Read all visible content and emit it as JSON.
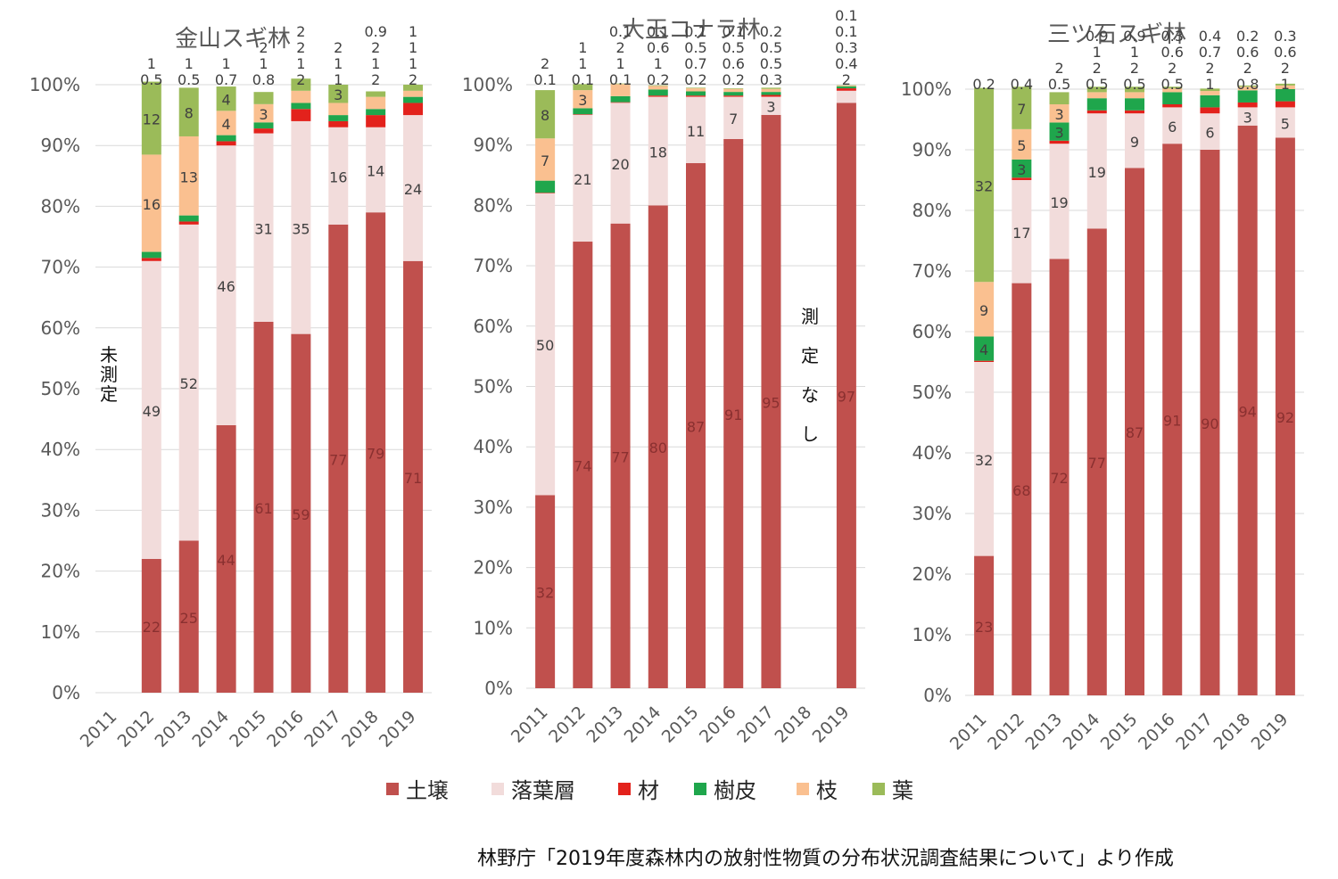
{
  "legend_position": "bottom",
  "source_note": "林野庁「2019年度森林内の放射性物質の分布状況調査結果について」より作成",
  "chart_data": [
    {
      "type": "bar",
      "stacked": true,
      "title": "金山スギ林",
      "categories": [
        "2011",
        "2012",
        "2013",
        "2014",
        "2015",
        "2016",
        "2017",
        "2018",
        "2019"
      ],
      "yticks": [
        "0%",
        "10%",
        "20%",
        "30%",
        "40%",
        "50%",
        "60%",
        "70%",
        "80%",
        "90%",
        "100%"
      ],
      "ylim": [
        0,
        100
      ],
      "annotation": "未測定",
      "annotation_category": "2011",
      "series": [
        {
          "name": "土壌",
          "color": "#c0504d",
          "values": [
            null,
            22,
            25,
            44,
            61,
            59,
            77,
            79,
            71
          ],
          "labels": [
            "",
            "22",
            "25",
            "44",
            "61",
            "59",
            "77",
            "79",
            "71"
          ]
        },
        {
          "name": "落葉層",
          "color": "#f2dcdb",
          "values": [
            null,
            49,
            52,
            46,
            31,
            35,
            16,
            14,
            24
          ],
          "labels": [
            "",
            "49",
            "52",
            "46",
            "31",
            "35",
            "16",
            "14",
            "24"
          ]
        },
        {
          "name": "材",
          "color": "#e3221c",
          "values": [
            null,
            0.5,
            0.5,
            0.7,
            0.8,
            2,
            1,
            2,
            2
          ],
          "labels": [
            "",
            "0.5",
            "0.5",
            "0.7",
            "0.8",
            "2",
            "1",
            "2",
            "2"
          ]
        },
        {
          "name": "樹皮",
          "color": "#1fa64c",
          "values": [
            null,
            1,
            1,
            1,
            1,
            1,
            1,
            1,
            1
          ],
          "labels": [
            "",
            "1",
            "1",
            "1",
            "1",
            "1",
            "1",
            "1",
            "1"
          ]
        },
        {
          "name": "枝",
          "color": "#fac090",
          "values": [
            null,
            16,
            13,
            4,
            3,
            2,
            2,
            2,
            1
          ],
          "labels": [
            "",
            "16",
            "13",
            "4",
            "3",
            "2",
            "2",
            "2",
            "1"
          ]
        },
        {
          "name": "葉",
          "color": "#9bbb59",
          "values": [
            null,
            12,
            8,
            4,
            2,
            2,
            3,
            0.9,
            1
          ],
          "labels": [
            "",
            "12",
            "8",
            "4",
            "2",
            "2",
            "3",
            "0.9",
            "1"
          ]
        }
      ]
    },
    {
      "type": "bar",
      "stacked": true,
      "title": "大玉コナラ林",
      "categories": [
        "2011",
        "2012",
        "2013",
        "2014",
        "2015",
        "2016",
        "2017",
        "2018",
        "2019"
      ],
      "yticks": [
        "0%",
        "10%",
        "20%",
        "30%",
        "40%",
        "50%",
        "60%",
        "70%",
        "80%",
        "90%",
        "100%"
      ],
      "ylim": [
        0,
        100
      ],
      "annotation": "測定なし",
      "annotation_category": "2018",
      "series": [
        {
          "name": "土壌",
          "color": "#c0504d",
          "values": [
            32,
            74,
            77,
            80,
            87,
            91,
            95,
            null,
            97
          ],
          "labels": [
            "32",
            "74",
            "77",
            "80",
            "87",
            "91",
            "95",
            "",
            "97"
          ]
        },
        {
          "name": "落葉層",
          "color": "#f2dcdb",
          "values": [
            50,
            21,
            20,
            18,
            11,
            7,
            3,
            null,
            2
          ],
          "labels": [
            "50",
            "21",
            "20",
            "18",
            "11",
            "7",
            "3",
            "",
            "2"
          ]
        },
        {
          "name": "材",
          "color": "#e3221c",
          "values": [
            0.1,
            0.1,
            0.1,
            0.2,
            0.2,
            0.2,
            0.3,
            null,
            0.4
          ],
          "labels": [
            "0.1",
            "0.1",
            "0.1",
            "0.2",
            "0.2",
            "0.2",
            "0.3",
            "",
            "0.4"
          ]
        },
        {
          "name": "樹皮",
          "color": "#1fa64c",
          "values": [
            2,
            1,
            1,
            1,
            0.7,
            0.6,
            0.5,
            null,
            0.3
          ],
          "labels": [
            "2",
            "1",
            "1",
            "1",
            "0.7",
            "0.6",
            "0.5",
            "",
            "0.3"
          ]
        },
        {
          "name": "枝",
          "color": "#fac090",
          "values": [
            7,
            3,
            2,
            0.6,
            0.5,
            0.5,
            0.5,
            null,
            0.1
          ],
          "labels": [
            "7",
            "3",
            "2",
            "0.6",
            "0.5",
            "0.5",
            "0.5",
            "",
            "0.1"
          ]
        },
        {
          "name": "葉",
          "color": "#9bbb59",
          "values": [
            8,
            1,
            0.1,
            0.1,
            0.1,
            0.1,
            0.2,
            null,
            0.1
          ],
          "labels": [
            "8",
            "1",
            "0.1",
            "0.1",
            "0.1",
            "0.1",
            "0.2",
            "",
            "0.1"
          ]
        }
      ]
    },
    {
      "type": "bar",
      "stacked": true,
      "title": "三ツ石スギ林",
      "categories": [
        "2011",
        "2012",
        "2013",
        "2014",
        "2015",
        "2016",
        "2017",
        "2018",
        "2019"
      ],
      "yticks": [
        "0%",
        "10%",
        "20%",
        "30%",
        "40%",
        "50%",
        "60%",
        "70%",
        "80%",
        "90%",
        "100%"
      ],
      "ylim": [
        0,
        100
      ],
      "series": [
        {
          "name": "土壌",
          "color": "#c0504d",
          "values": [
            23,
            68,
            72,
            77,
            87,
            91,
            90,
            94,
            92
          ],
          "labels": [
            "23",
            "68",
            "72",
            "77",
            "87",
            "91",
            "90",
            "94",
            "92"
          ]
        },
        {
          "name": "落葉層",
          "color": "#f2dcdb",
          "values": [
            32,
            17,
            19,
            19,
            9,
            6,
            6,
            3,
            5
          ],
          "labels": [
            "32",
            "17",
            "19",
            "19",
            "9",
            "6",
            "6",
            "3",
            "5"
          ]
        },
        {
          "name": "材",
          "color": "#e3221c",
          "values": [
            0.2,
            0.4,
            0.5,
            0.5,
            0.5,
            0.5,
            1,
            0.8,
            1
          ],
          "labels": [
            "0.2",
            "0.4",
            "0.5",
            "0.5",
            "0.5",
            "0.5",
            "1",
            "0.8",
            "1"
          ]
        },
        {
          "name": "樹皮",
          "color": "#1fa64c",
          "values": [
            4,
            3,
            3,
            2,
            2,
            2,
            2,
            2,
            2
          ],
          "labels": [
            "4",
            "3",
            "3",
            "2",
            "2",
            "2",
            "2",
            "2",
            "2"
          ]
        },
        {
          "name": "枝",
          "color": "#fac090",
          "values": [
            9,
            5,
            3,
            1,
            1,
            0.6,
            0.7,
            0.6,
            0.6
          ],
          "labels": [
            "9",
            "5",
            "3",
            "1",
            "1",
            "0.6",
            "0.7",
            "0.6",
            "0.6"
          ]
        },
        {
          "name": "葉",
          "color": "#9bbb59",
          "values": [
            32,
            7,
            2,
            0.9,
            0.9,
            0.3,
            0.4,
            0.2,
            0.3
          ],
          "labels": [
            "32",
            "7",
            "2",
            "0.9",
            "0.9",
            "0.3",
            "0.4",
            "0.2",
            "0.3"
          ]
        }
      ]
    }
  ]
}
